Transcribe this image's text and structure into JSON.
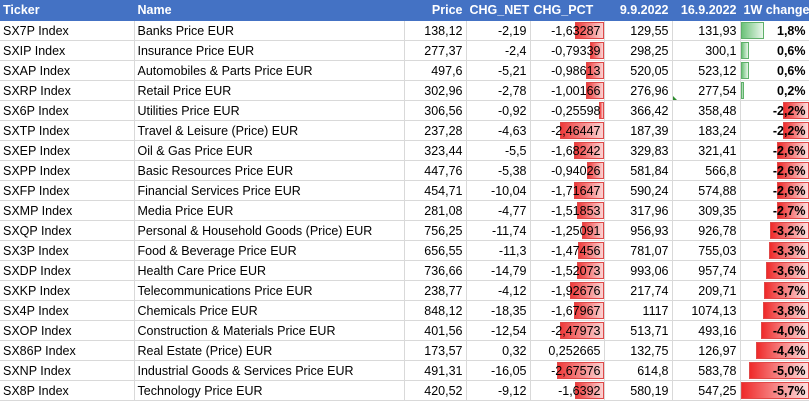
{
  "headers": [
    "Ticker",
    "Name",
    "Price",
    "CHG_NET",
    "CHG_PCT",
    "9.9.2022",
    "16.9.2022",
    "1W change"
  ],
  "rows": [
    {
      "ticker": "SX7P Index",
      "name": "Banks Price EUR",
      "price": "138,12",
      "chg_net": "-2,19",
      "chg_pct": "-1,63287",
      "pct_fill": 0.39,
      "d1": "129,55",
      "d2": "131,93",
      "w": "1,8%",
      "w_fill": 0.35
    },
    {
      "ticker": "SXIP Index",
      "name": "Insurance Price EUR",
      "price": "277,37",
      "chg_net": "-2,4",
      "chg_pct": "-0,79339",
      "pct_fill": 0.19,
      "d1": "298,25",
      "d2": "300,1",
      "w": "0,6%",
      "w_fill": 0.12
    },
    {
      "ticker": "SXAP Index",
      "name": "Automobiles & Parts Price EUR",
      "price": "497,6",
      "chg_net": "-5,21",
      "chg_pct": "-0,98613",
      "pct_fill": 0.24,
      "d1": "520,05",
      "d2": "523,12",
      "w": "0,6%",
      "w_fill": 0.12
    },
    {
      "ticker": "SXRP Index",
      "name": "Retail Price EUR",
      "price": "302,96",
      "chg_net": "-2,78",
      "chg_pct": "-1,00166",
      "pct_fill": 0.24,
      "d1": "276,96",
      "d2": "277,54",
      "w": "0,2%",
      "w_fill": 0.05
    },
    {
      "ticker": "SX6P Index",
      "name": "Utilities Price EUR",
      "price": "306,56",
      "chg_net": "-0,92",
      "chg_pct": "-0,25598",
      "pct_fill": 0.06,
      "d1": "366,42",
      "d2": "358,48",
      "w": "-2,2%",
      "w_fill": 0.38
    },
    {
      "ticker": "SXTP Index",
      "name": "Travel & Leisure (Price) EUR",
      "price": "237,28",
      "chg_net": "-4,63",
      "chg_pct": "-2,46447",
      "pct_fill": 0.59,
      "d1": "187,39",
      "d2": "183,24",
      "w": "-2,2%",
      "w_fill": 0.38
    },
    {
      "ticker": "SXEP Index",
      "name": "Oil & Gas Price EUR",
      "price": "323,44",
      "chg_net": "-5,5",
      "chg_pct": "-1,68242",
      "pct_fill": 0.4,
      "d1": "329,83",
      "d2": "321,41",
      "w": "-2,6%",
      "w_fill": 0.46
    },
    {
      "ticker": "SXPP Index",
      "name": "Basic Resources Price EUR",
      "price": "447,76",
      "chg_net": "-5,38",
      "chg_pct": "-0,94026",
      "pct_fill": 0.22,
      "d1": "581,84",
      "d2": "566,8",
      "w": "-2,6%",
      "w_fill": 0.46
    },
    {
      "ticker": "SXFP Index",
      "name": "Financial Services Price EUR",
      "price": "454,71",
      "chg_net": "-10,04",
      "chg_pct": "-1,71647",
      "pct_fill": 0.41,
      "d1": "590,24",
      "d2": "574,88",
      "w": "-2,6%",
      "w_fill": 0.46
    },
    {
      "ticker": "SXMP Index",
      "name": "Media Price EUR",
      "price": "281,08",
      "chg_net": "-4,77",
      "chg_pct": "-1,51853",
      "pct_fill": 0.36,
      "d1": "317,96",
      "d2": "309,35",
      "w": "-2,7%",
      "w_fill": 0.47
    },
    {
      "ticker": "SXQP Index",
      "name": "Personal & Household Goods (Price) EUR",
      "price": "756,25",
      "chg_net": "-11,74",
      "chg_pct": "-1,25091",
      "pct_fill": 0.3,
      "d1": "956,93",
      "d2": "926,78",
      "w": "-3,2%",
      "w_fill": 0.56
    },
    {
      "ticker": "SX3P Index",
      "name": "Food & Beverage Price EUR",
      "price": "656,55",
      "chg_net": "-11,3",
      "chg_pct": "-1,47456",
      "pct_fill": 0.35,
      "d1": "781,07",
      "d2": "755,03",
      "w": "-3,3%",
      "w_fill": 0.58
    },
    {
      "ticker": "SXDP Index",
      "name": "Health Care Price EUR",
      "price": "736,66",
      "chg_net": "-14,79",
      "chg_pct": "-1,52073",
      "pct_fill": 0.36,
      "d1": "993,06",
      "d2": "957,74",
      "w": "-3,6%",
      "w_fill": 0.63
    },
    {
      "ticker": "SXKP Index",
      "name": "Telecommunications Price EUR",
      "price": "238,77",
      "chg_net": "-4,12",
      "chg_pct": "-1,92676",
      "pct_fill": 0.46,
      "d1": "217,74",
      "d2": "209,71",
      "w": "-3,7%",
      "w_fill": 0.65
    },
    {
      "ticker": "SX4P Index",
      "name": "Chemicals Price EUR",
      "price": "848,12",
      "chg_net": "-18,35",
      "chg_pct": "-1,67967",
      "pct_fill": 0.4,
      "d1": "1117",
      "d2": "1074,13",
      "w": "-3,8%",
      "w_fill": 0.67
    },
    {
      "ticker": "SXOP Index",
      "name": "Construction & Materials Price EUR",
      "price": "401,56",
      "chg_net": "-12,54",
      "chg_pct": "-2,47973",
      "pct_fill": 0.59,
      "d1": "513,71",
      "d2": "493,16",
      "w": "-4,0%",
      "w_fill": 0.7
    },
    {
      "ticker": "SX86P Index",
      "name": "Real Estate (Price) EUR",
      "price": "173,57",
      "chg_net": "0,32",
      "chg_pct": "0,252665",
      "pct_fill": 0.0,
      "d1": "132,75",
      "d2": "126,97",
      "w": "-4,4%",
      "w_fill": 0.77
    },
    {
      "ticker": "SXNP Index",
      "name": "Industrial Goods & Services Price EUR",
      "price": "491,31",
      "chg_net": "-16,05",
      "chg_pct": "-2,67576",
      "pct_fill": 0.64,
      "d1": "614,8",
      "d2": "583,78",
      "w": "-5,0%",
      "w_fill": 0.88
    },
    {
      "ticker": "SX8P Index",
      "name": "Technology Price EUR",
      "price": "420,52",
      "chg_net": "-9,12",
      "chg_pct": "-1,6392",
      "pct_fill": 0.39,
      "d1": "580,19",
      "d2": "547,25",
      "w": "-5,7%",
      "w_fill": 1.0
    }
  ],
  "colors": {
    "header_bg": "#4472c4",
    "neg_bar": "#ef3b3b",
    "pos_bar": "#6ec27a",
    "grid": "#d9d9d9"
  }
}
